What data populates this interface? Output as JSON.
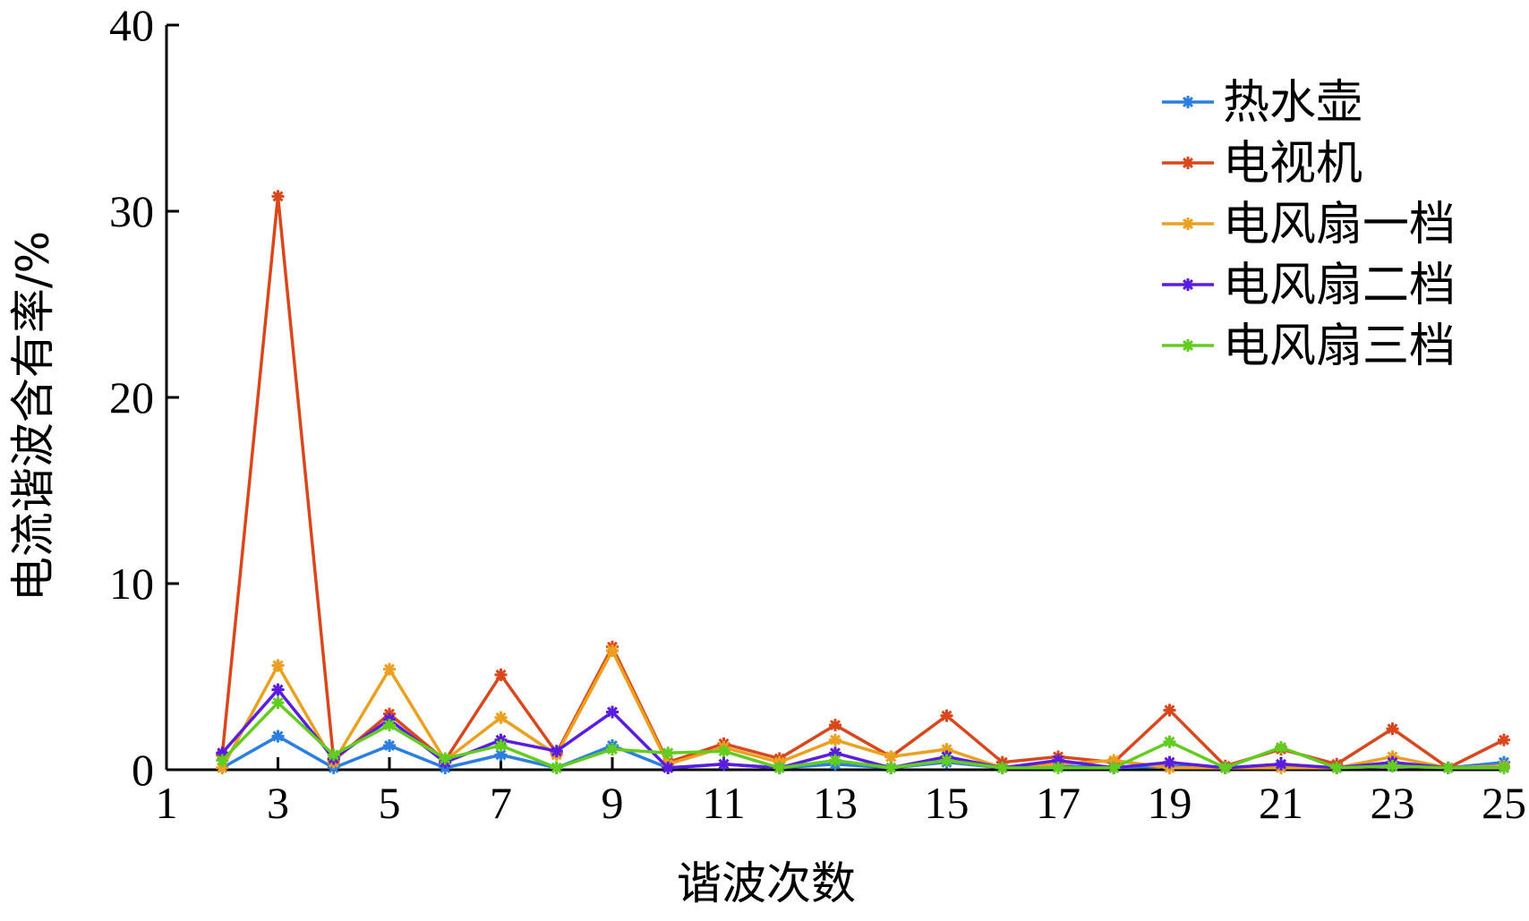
{
  "chart_data": {
    "type": "line",
    "title": "",
    "xlabel": "谐波次数",
    "ylabel": "电流谐波含有率/%",
    "xlim": [
      1,
      25
    ],
    "ylim": [
      0,
      40
    ],
    "xticks": [
      1,
      3,
      5,
      7,
      9,
      11,
      13,
      15,
      17,
      19,
      21,
      23,
      25
    ],
    "yticks": [
      0,
      10,
      20,
      30,
      40
    ],
    "grid": false,
    "legend_position": "top-right",
    "marker": "asterisk",
    "x": [
      2,
      3,
      4,
      5,
      6,
      7,
      8,
      9,
      10,
      11,
      12,
      13,
      14,
      15,
      16,
      17,
      18,
      19,
      20,
      21,
      22,
      23,
      24,
      25
    ],
    "series": [
      {
        "name": "热水壶",
        "color": "#2b7fe0",
        "values": [
          0.1,
          1.8,
          0.1,
          1.3,
          0.1,
          0.8,
          0.1,
          1.3,
          0.1,
          0.3,
          0.1,
          0.3,
          0.1,
          0.4,
          0.1,
          0.2,
          0.1,
          0.2,
          0.1,
          0.2,
          0.1,
          0.2,
          0.1,
          0.4
        ]
      },
      {
        "name": "电视机",
        "color": "#d9481c",
        "values": [
          0.8,
          30.8,
          0.5,
          3.0,
          0.5,
          5.1,
          0.9,
          6.6,
          0.4,
          1.4,
          0.6,
          2.4,
          0.7,
          2.9,
          0.4,
          0.7,
          0.4,
          3.2,
          0.2,
          1.1,
          0.3,
          2.2,
          0.1,
          1.6
        ]
      },
      {
        "name": "电风扇一档",
        "color": "#eba020",
        "values": [
          0.1,
          5.6,
          0.4,
          5.4,
          0.5,
          2.8,
          0.8,
          6.4,
          0.3,
          1.2,
          0.4,
          1.6,
          0.7,
          1.1,
          0.1,
          0.3,
          0.5,
          0.1,
          0.1,
          0.1,
          0.1,
          0.7,
          0.1,
          0.2
        ]
      },
      {
        "name": "电风扇二档",
        "color": "#5a1de0",
        "values": [
          0.9,
          4.3,
          0.6,
          2.7,
          0.4,
          1.6,
          1.0,
          3.1,
          0.1,
          0.3,
          0.1,
          0.9,
          0.1,
          0.7,
          0.1,
          0.5,
          0.1,
          0.4,
          0.1,
          0.3,
          0.1,
          0.4,
          0.1,
          0.1
        ]
      },
      {
        "name": "电风扇三档",
        "color": "#62cc20",
        "values": [
          0.5,
          3.6,
          0.8,
          2.4,
          0.6,
          1.3,
          0.1,
          1.1,
          0.9,
          1.0,
          0.1,
          0.5,
          0.1,
          0.5,
          0.1,
          0.1,
          0.1,
          1.5,
          0.1,
          1.2,
          0.1,
          0.2,
          0.1,
          0.1
        ]
      }
    ]
  }
}
